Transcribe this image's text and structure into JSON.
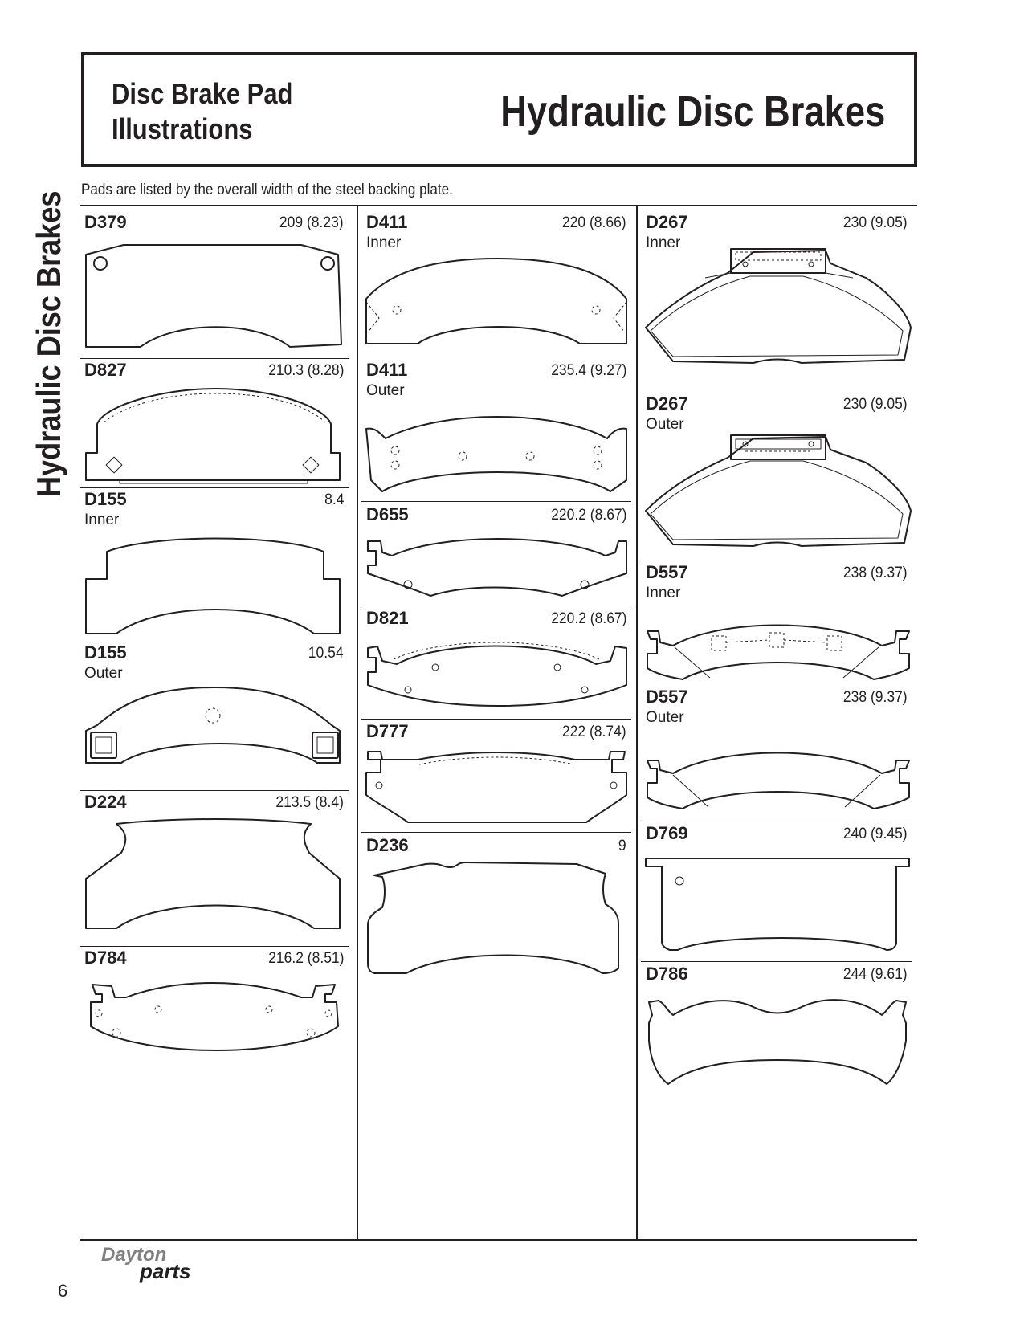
{
  "header": {
    "subtitle": "Disc Brake Pad Illustrations",
    "title": "Hydraulic Disc Brakes"
  },
  "intro": "Pads are listed by the overall width of the steel backing plate.",
  "side_title": "Hydraulic Disc Brakes",
  "columns": [
    [
      {
        "code": "D379",
        "size": "209 (8.23)",
        "sub": ""
      },
      {
        "code": "D827",
        "size": "210.3 (8.28)",
        "sub": ""
      },
      {
        "code": "D155",
        "size": "8.4",
        "sub": "Inner"
      },
      {
        "code": "D155",
        "size": "10.54",
        "sub": "Outer"
      },
      {
        "code": "D224",
        "size": "213.5 (8.4)",
        "sub": ""
      },
      {
        "code": "D784",
        "size": "216.2 (8.51)",
        "sub": ""
      }
    ],
    [
      {
        "code": "D411",
        "size": "220 (8.66)",
        "sub": "Inner"
      },
      {
        "code": "D411",
        "size": "235.4 (9.27)",
        "sub": "Outer"
      },
      {
        "code": "D655",
        "size": "220.2 (8.67)",
        "sub": ""
      },
      {
        "code": "D821",
        "size": "220.2 (8.67)",
        "sub": ""
      },
      {
        "code": "D777",
        "size": "222 (8.74)",
        "sub": ""
      },
      {
        "code": "D236",
        "size": "9",
        "sub": ""
      }
    ],
    [
      {
        "code": "D267",
        "size": "230 (9.05)",
        "sub": "Inner"
      },
      {
        "code": "D267",
        "size": "230 (9.05)",
        "sub": "Outer"
      },
      {
        "code": "D557",
        "size": "238 (9.37)",
        "sub": "Inner"
      },
      {
        "code": "D557",
        "size": "238 (9.37)",
        "sub": "Outer"
      },
      {
        "code": "D769",
        "size": "240 (9.45)",
        "sub": ""
      },
      {
        "code": "D786",
        "size": "244 (9.61)",
        "sub": ""
      }
    ]
  ],
  "footer": {
    "page_number": "6",
    "logo_top": "Dayton",
    "logo_bottom": "parts"
  }
}
